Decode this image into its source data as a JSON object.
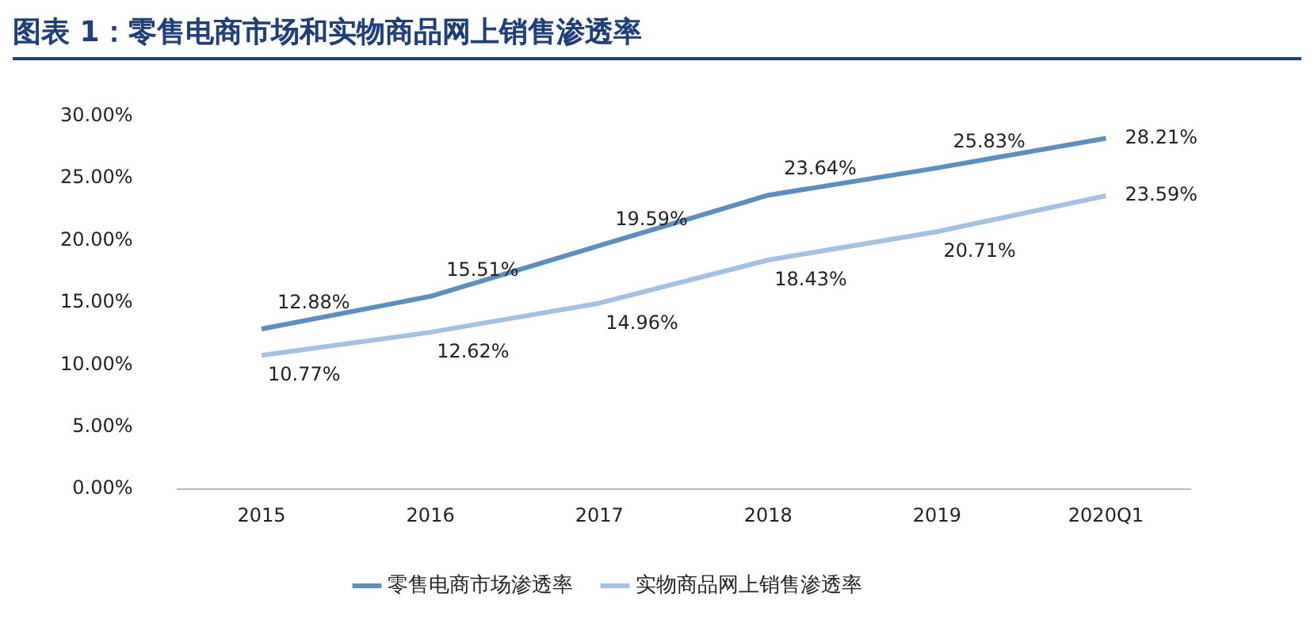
{
  "chart_data": {
    "type": "line",
    "title": "图表 1：零售电商市场和实物商品网上销售渗透率",
    "categories": [
      "2015",
      "2016",
      "2017",
      "2018",
      "2019",
      "2020Q1"
    ],
    "series": [
      {
        "name": "零售电商市场渗透率",
        "color": "#5b8fbf",
        "values": [
          12.88,
          15.51,
          19.59,
          23.64,
          25.83,
          28.21
        ],
        "value_labels": [
          "12.88%",
          "15.51%",
          "19.59%",
          "23.64%",
          "25.83%",
          "28.21%"
        ]
      },
      {
        "name": "实物商品网上销售渗透率",
        "color": "#a3c2e3",
        "values": [
          10.77,
          12.62,
          14.96,
          18.43,
          20.71,
          23.59
        ],
        "value_labels": [
          "10.77%",
          "12.62%",
          "14.96%",
          "18.43%",
          "20.71%",
          "23.59%"
        ]
      }
    ],
    "ylim": [
      0,
      30
    ],
    "yticks": [
      {
        "value": 0,
        "label": "0.00%"
      },
      {
        "value": 5,
        "label": "5.00%"
      },
      {
        "value": 10,
        "label": "10.00%"
      },
      {
        "value": 15,
        "label": "15.00%"
      },
      {
        "value": 20,
        "label": "20.00%"
      },
      {
        "value": 25,
        "label": "25.00%"
      },
      {
        "value": 30,
        "label": "30.00%"
      }
    ],
    "grid": false,
    "legend": "bottom",
    "marker": "none",
    "line_style": "solid"
  }
}
